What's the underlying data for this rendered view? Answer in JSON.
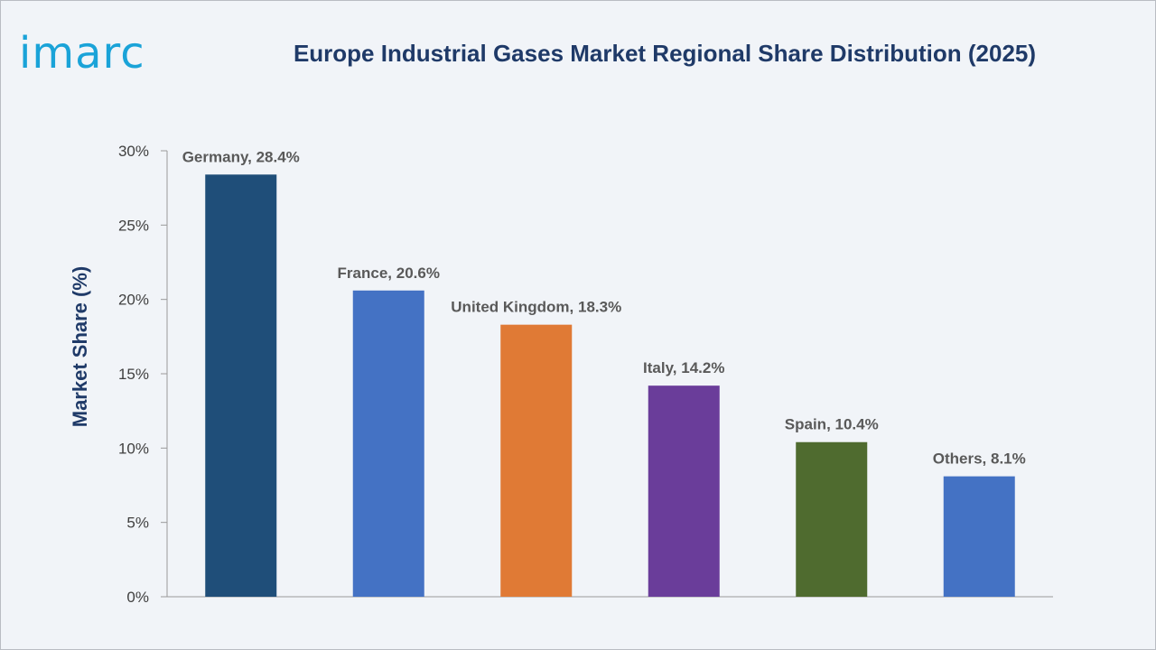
{
  "logo": {
    "text": "imarc"
  },
  "chart_data": {
    "type": "bar",
    "title": "Europe Industrial Gases Market Regional Share Distribution (2025)",
    "xlabel": "",
    "ylabel": "Market Share (%)",
    "ylim": [
      0,
      30
    ],
    "yticks": [
      0,
      5,
      10,
      15,
      20,
      25,
      30
    ],
    "ytick_labels": [
      "0%",
      "5%",
      "10%",
      "15%",
      "20%",
      "25%",
      "30%"
    ],
    "categories": [
      "Germany",
      "France",
      "United Kingdom",
      "Italy",
      "Spain",
      "Others"
    ],
    "values": [
      28.4,
      20.6,
      18.3,
      14.2,
      10.4,
      8.1
    ],
    "data_labels": [
      "Germany, 28.4%",
      "France, 20.6%",
      "United Kingdom, 18.3%",
      "Italy, 14.2%",
      "Spain, 10.4%",
      "Others, 8.1%"
    ],
    "colors": [
      "#1f4e79",
      "#4472c4",
      "#e07a35",
      "#6a3d9a",
      "#4f6b2f",
      "#4472c4"
    ],
    "grid": false,
    "legend": "none"
  }
}
